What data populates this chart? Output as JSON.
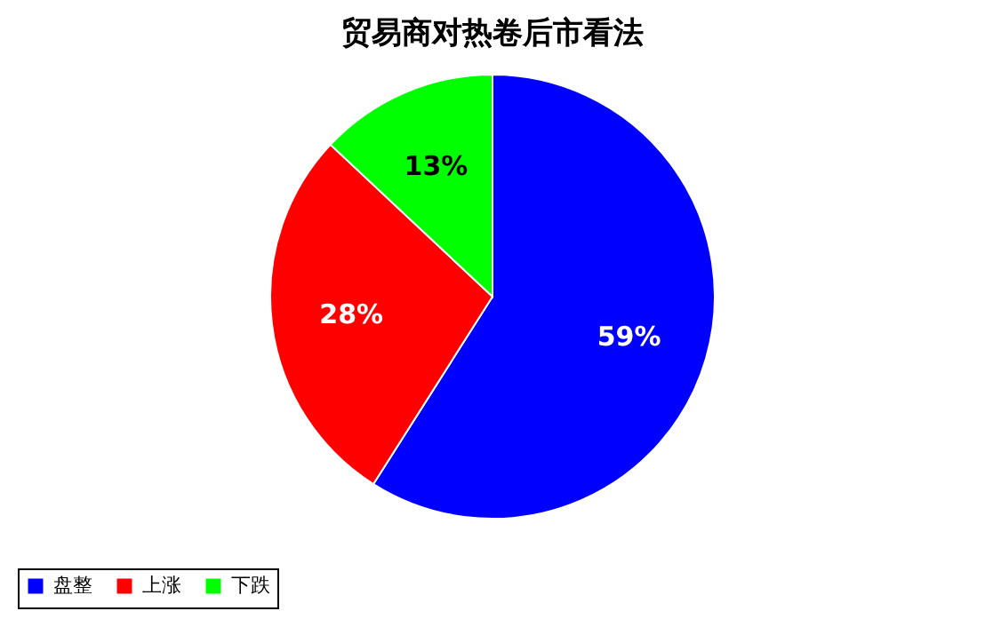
{
  "chart_data": {
    "type": "pie",
    "title": "贸易商对热卷后市看法",
    "categories": [
      "盘整",
      "上涨",
      "下跌"
    ],
    "values": [
      59,
      28,
      13
    ],
    "value_labels": [
      "59%",
      "28%",
      "13%"
    ],
    "colors": [
      "#0000ff",
      "#ff0000",
      "#00ff00"
    ],
    "legend": "bottom"
  }
}
